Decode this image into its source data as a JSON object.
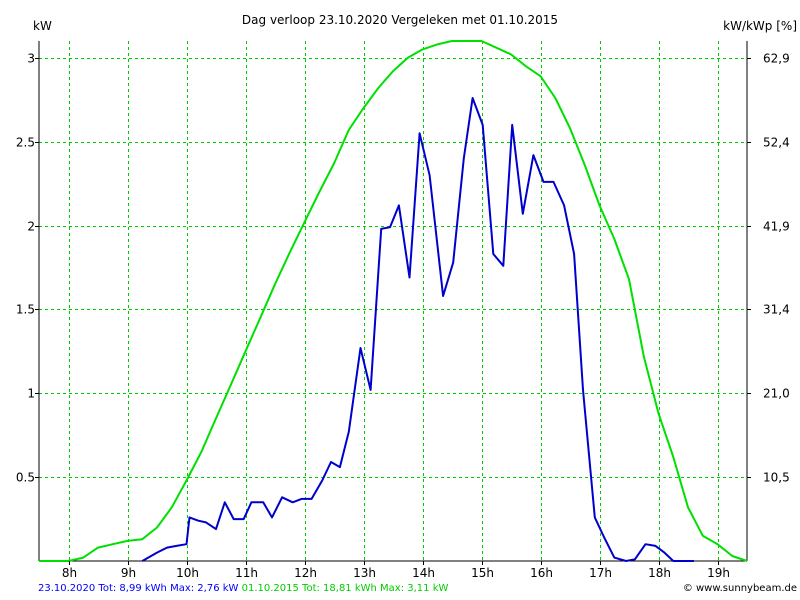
{
  "chart_data": {
    "type": "line",
    "title": "Dag  verloop 23.10.2020    Vergeleken met 01.10.2015",
    "ylabel_left": "kW",
    "ylabel_right": "kW/kWp [%]",
    "x_tick_labels": [
      "8h",
      "9h",
      "10h",
      "11h",
      "12h",
      "13h",
      "14h",
      "15h",
      "16h",
      "17h",
      "18h",
      "19h"
    ],
    "x_range_hours": [
      7.5,
      19.5
    ],
    "ylim": [
      0,
      3.1
    ],
    "left_ticks": [
      {
        "v": 0.5,
        "label": "0.5"
      },
      {
        "v": 1,
        "label": "1"
      },
      {
        "v": 1.5,
        "label": "1.5"
      },
      {
        "v": 2,
        "label": "2"
      },
      {
        "v": 2.5,
        "label": "2.5"
      },
      {
        "v": 3,
        "label": "3"
      }
    ],
    "right_ticks": [
      {
        "v": 0.5,
        "label": "10,5"
      },
      {
        "v": 1,
        "label": "21,0"
      },
      {
        "v": 1.5,
        "label": "31,4"
      },
      {
        "v": 2,
        "label": "41,9"
      },
      {
        "v": 2.5,
        "label": "52,4"
      },
      {
        "v": 3,
        "label": "62,9"
      }
    ],
    "grid": true,
    "colors": {
      "series_2020": "#0000cc",
      "series_2015": "#00e000",
      "grid": "#00cc00",
      "axis": "#000000"
    },
    "series": [
      {
        "color": "#0000cc",
        "points": [
          [
            9.25,
            0.0
          ],
          [
            9.5,
            0.05
          ],
          [
            9.67,
            0.08
          ],
          [
            9.83,
            0.09
          ],
          [
            10.0,
            0.1
          ],
          [
            10.05,
            0.26
          ],
          [
            10.2,
            0.24
          ],
          [
            10.33,
            0.23
          ],
          [
            10.5,
            0.19
          ],
          [
            10.65,
            0.35
          ],
          [
            10.8,
            0.25
          ],
          [
            10.97,
            0.25
          ],
          [
            11.1,
            0.35
          ],
          [
            11.3,
            0.35
          ],
          [
            11.45,
            0.26
          ],
          [
            11.62,
            0.38
          ],
          [
            11.8,
            0.35
          ],
          [
            11.95,
            0.37
          ],
          [
            12.12,
            0.37
          ],
          [
            12.3,
            0.48
          ],
          [
            12.45,
            0.59
          ],
          [
            12.6,
            0.56
          ],
          [
            12.75,
            0.77
          ],
          [
            12.95,
            1.27
          ],
          [
            13.12,
            1.02
          ],
          [
            13.3,
            1.98
          ],
          [
            13.45,
            1.99
          ],
          [
            13.6,
            2.12
          ],
          [
            13.78,
            1.69
          ],
          [
            13.95,
            2.55
          ],
          [
            14.12,
            2.3
          ],
          [
            14.35,
            1.58
          ],
          [
            14.52,
            1.78
          ],
          [
            14.7,
            2.4
          ],
          [
            14.85,
            2.76
          ],
          [
            15.02,
            2.6
          ],
          [
            15.2,
            1.83
          ],
          [
            15.37,
            1.76
          ],
          [
            15.52,
            2.6
          ],
          [
            15.7,
            2.07
          ],
          [
            15.88,
            2.42
          ],
          [
            16.05,
            2.26
          ],
          [
            16.22,
            2.26
          ],
          [
            16.4,
            2.12
          ],
          [
            16.57,
            1.83
          ],
          [
            16.72,
            1.02
          ],
          [
            16.92,
            0.26
          ],
          [
            17.08,
            0.14
          ],
          [
            17.25,
            0.02
          ],
          [
            17.45,
            0.0
          ],
          [
            17.6,
            0.01
          ],
          [
            17.78,
            0.1
          ],
          [
            17.95,
            0.09
          ],
          [
            18.1,
            0.05
          ],
          [
            18.25,
            0.0
          ],
          [
            18.6,
            0.0
          ]
        ]
      },
      {
        "color": "#00e000",
        "points": [
          [
            7.5,
            0.0
          ],
          [
            8.0,
            0.0
          ],
          [
            8.25,
            0.02
          ],
          [
            8.5,
            0.08
          ],
          [
            8.75,
            0.1
          ],
          [
            9.0,
            0.12
          ],
          [
            9.25,
            0.13
          ],
          [
            9.5,
            0.2
          ],
          [
            9.75,
            0.32
          ],
          [
            10.0,
            0.48
          ],
          [
            10.25,
            0.65
          ],
          [
            10.5,
            0.85
          ],
          [
            10.75,
            1.05
          ],
          [
            11.0,
            1.25
          ],
          [
            11.25,
            1.45
          ],
          [
            11.5,
            1.65
          ],
          [
            11.75,
            1.84
          ],
          [
            12.0,
            2.02
          ],
          [
            12.25,
            2.2
          ],
          [
            12.5,
            2.37
          ],
          [
            12.75,
            2.57
          ],
          [
            13.0,
            2.7
          ],
          [
            13.25,
            2.82
          ],
          [
            13.5,
            2.92
          ],
          [
            13.75,
            3.0
          ],
          [
            14.0,
            3.05
          ],
          [
            14.25,
            3.08
          ],
          [
            14.5,
            3.1
          ],
          [
            14.75,
            3.1
          ],
          [
            15.0,
            3.1
          ],
          [
            15.25,
            3.06
          ],
          [
            15.5,
            3.02
          ],
          [
            15.75,
            2.95
          ],
          [
            16.0,
            2.89
          ],
          [
            16.25,
            2.76
          ],
          [
            16.5,
            2.58
          ],
          [
            16.75,
            2.36
          ],
          [
            17.0,
            2.12
          ],
          [
            17.25,
            1.92
          ],
          [
            17.5,
            1.68
          ],
          [
            17.75,
            1.22
          ],
          [
            18.0,
            0.88
          ],
          [
            18.25,
            0.62
          ],
          [
            18.5,
            0.32
          ],
          [
            18.75,
            0.15
          ],
          [
            19.0,
            0.1
          ],
          [
            19.25,
            0.03
          ],
          [
            19.5,
            0.0
          ]
        ]
      }
    ]
  },
  "footer": {
    "part1": "23.10.2020 Tot: 8,99 kWh Max: 2,76 kW",
    "part2": "01.10.2015 Tot: 18,81 kWh Max: 3,11 kW",
    "credit": "© www.sunnybeam.de"
  }
}
